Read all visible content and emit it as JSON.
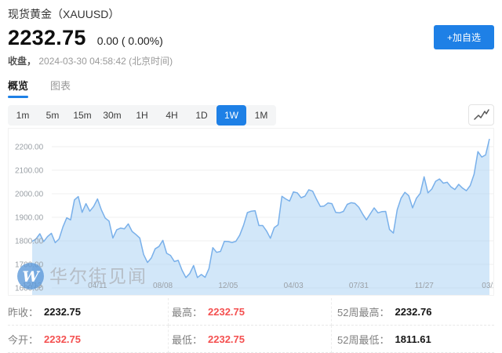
{
  "header": {
    "title": "现货黄金（XAUUSD）",
    "price": "2232.75",
    "change": "0.00 ( 0.00%)",
    "close_label": "收盘，",
    "close_time": "2024-03-30 04:58:42 (北京时间)",
    "add_watchlist": "+加自选"
  },
  "tabs": [
    {
      "label": "概览",
      "active": true
    },
    {
      "label": "图表",
      "active": false
    }
  ],
  "intervals": [
    {
      "label": "1m",
      "active": false
    },
    {
      "label": "5m",
      "active": false
    },
    {
      "label": "15m",
      "active": false
    },
    {
      "label": "30m",
      "active": false
    },
    {
      "label": "1H",
      "active": false
    },
    {
      "label": "4H",
      "active": false
    },
    {
      "label": "1D",
      "active": false
    },
    {
      "label": "1W",
      "active": true
    },
    {
      "label": "1M",
      "active": false
    }
  ],
  "chart_toolbar": {
    "style_icon": "line-chart-icon"
  },
  "chart_data": {
    "type": "area",
    "symbol": "XAUUSD",
    "period": "1W",
    "title": "",
    "ylim": [
      1570,
      2277
    ],
    "grid": true,
    "y_ticks": [
      {
        "value": 2200,
        "label": "2200.00"
      },
      {
        "value": 2100,
        "label": "2100.00"
      },
      {
        "value": 2000,
        "label": "2000.00"
      },
      {
        "value": 1900,
        "label": "1900.00"
      },
      {
        "value": 1800,
        "label": "1800.00"
      },
      {
        "value": 1700,
        "label": "1700.00"
      },
      {
        "value": 1600,
        "label": "1600.00"
      }
    ],
    "x_ticks": [
      {
        "index": 0,
        "label": "12/13"
      },
      {
        "index": 17,
        "label": "04/11"
      },
      {
        "index": 34,
        "label": "08/08"
      },
      {
        "index": 51,
        "label": "12/05"
      },
      {
        "index": 68,
        "label": "04/03"
      },
      {
        "index": 85,
        "label": "07/31"
      },
      {
        "index": 102,
        "label": "11/27"
      },
      {
        "index": 119,
        "label": "03/2"
      }
    ],
    "values": [
      1798,
      1808,
      1830,
      1797,
      1818,
      1832,
      1792,
      1808,
      1859,
      1898,
      1889,
      1974,
      1988,
      1921,
      1958,
      1926,
      1946,
      1978,
      1932,
      1897,
      1884,
      1812,
      1847,
      1854,
      1851,
      1872,
      1840,
      1827,
      1812,
      1742,
      1708,
      1727,
      1766,
      1776,
      1802,
      1747,
      1738,
      1712,
      1717,
      1675,
      1644,
      1661,
      1695,
      1644,
      1657,
      1645,
      1682,
      1771,
      1751,
      1755,
      1798,
      1797,
      1793,
      1798,
      1824,
      1866,
      1920,
      1926,
      1928,
      1865,
      1865,
      1842,
      1811,
      1856,
      1868,
      1989,
      1978,
      1969,
      2008,
      2004,
      1983,
      1990,
      2017,
      2011,
      1977,
      1946,
      1948,
      1961,
      1958,
      1921,
      1919,
      1925,
      1955,
      1962,
      1959,
      1943,
      1914,
      1889,
      1915,
      1940,
      1919,
      1924,
      1925,
      1848,
      1833,
      1932,
      1981,
      2006,
      1992,
      1940,
      1981,
      2002,
      2072,
      2004,
      2020,
      2053,
      2063,
      2045,
      2049,
      2029,
      2018,
      2040,
      2024,
      2013,
      2035,
      2083,
      2179,
      2156,
      2165,
      2233
    ]
  },
  "watermark": {
    "logo_letter": "W",
    "text": "华尔街见闻"
  },
  "stats": {
    "rows": [
      [
        {
          "label": "昨收：",
          "value": "2232.75",
          "color": "dark"
        },
        {
          "label": "最高：",
          "value": "2232.75",
          "color": "red"
        },
        {
          "label": "52周最高：",
          "value": "2232.76",
          "color": "dark"
        }
      ],
      [
        {
          "label": "今开：",
          "value": "2232.75",
          "color": "red"
        },
        {
          "label": "最低：",
          "value": "2232.75",
          "color": "red"
        },
        {
          "label": "52周最低：",
          "value": "1811.61",
          "color": "dark"
        }
      ]
    ]
  },
  "colors": {
    "accent": "#1e80e6",
    "red": "#f45050",
    "line": "#79b0ea",
    "fill": "rgba(166,208,244,0.5)",
    "grid": "#efefef",
    "axis_text": "#9aa0a6",
    "watermark_circle": "#5e9ad9",
    "watermark_text": "#b4bac2"
  }
}
